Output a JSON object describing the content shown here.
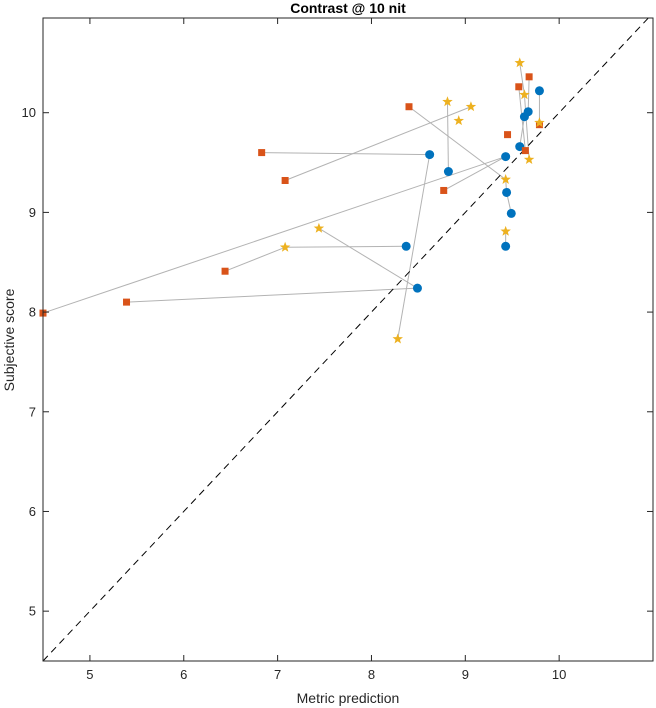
{
  "chart_data": {
    "type": "scatter",
    "title": "Contrast @ 10 nit",
    "xlabel": "Metric prediction",
    "ylabel": "Subjective score",
    "xlim": [
      4.5,
      11.0
    ],
    "ylim": [
      4.5,
      10.95
    ],
    "xticks": [
      5,
      6,
      7,
      8,
      9,
      10
    ],
    "yticks": [
      5,
      6,
      7,
      8,
      9,
      10
    ],
    "grid": false,
    "reference_line": {
      "style": "dashed",
      "color": "#000000",
      "from": [
        4.5,
        4.5
      ],
      "to": [
        11.0,
        11.0
      ]
    },
    "colors": {
      "connector": "#b3b3b3",
      "blue": "#0072bd",
      "orange": "#d95319",
      "yellow": "#edb120"
    },
    "series": [
      {
        "name": "circles",
        "marker": "circle",
        "color": "#0072bd",
        "points": [
          [
            8.62,
            9.58
          ],
          [
            8.82,
            9.41
          ],
          [
            8.37,
            8.66
          ],
          [
            8.49,
            8.24
          ],
          [
            9.43,
            9.56
          ],
          [
            9.44,
            9.2
          ],
          [
            9.49,
            8.99
          ],
          [
            9.43,
            8.66
          ],
          [
            9.58,
            9.66
          ],
          [
            9.63,
            9.96
          ],
          [
            9.67,
            10.01
          ],
          [
            9.79,
            10.22
          ]
        ]
      },
      {
        "name": "squares",
        "marker": "square",
        "color": "#d95319",
        "points": [
          [
            4.5,
            7.99
          ],
          [
            5.39,
            8.1
          ],
          [
            6.44,
            8.41
          ],
          [
            6.83,
            9.6
          ],
          [
            7.08,
            9.32
          ],
          [
            8.4,
            10.06
          ],
          [
            8.77,
            9.22
          ],
          [
            9.45,
            9.78
          ],
          [
            9.57,
            10.26
          ],
          [
            9.68,
            10.36
          ],
          [
            9.64,
            9.62
          ],
          [
            9.79,
            9.88
          ]
        ]
      },
      {
        "name": "stars",
        "marker": "star",
        "color": "#edb120",
        "points": [
          [
            7.08,
            8.65
          ],
          [
            7.44,
            8.84
          ],
          [
            8.28,
            7.73
          ],
          [
            8.81,
            10.11
          ],
          [
            8.93,
            9.92
          ],
          [
            9.06,
            10.06
          ],
          [
            9.43,
            8.81
          ],
          [
            9.43,
            9.33
          ],
          [
            9.58,
            10.5
          ],
          [
            9.63,
            10.18
          ],
          [
            9.68,
            9.53
          ],
          [
            9.79,
            9.9
          ]
        ]
      }
    ],
    "connections": [
      [
        [
          4.5,
          7.99
        ],
        [
          9.43,
          9.56
        ]
      ],
      [
        [
          5.39,
          8.1
        ],
        [
          8.49,
          8.24
        ]
      ],
      [
        [
          6.44,
          8.41
        ],
        [
          7.08,
          8.65
        ]
      ],
      [
        [
          7.08,
          8.65
        ],
        [
          8.37,
          8.66
        ]
      ],
      [
        [
          6.83,
          9.6
        ],
        [
          8.62,
          9.58
        ]
      ],
      [
        [
          8.62,
          9.58
        ],
        [
          8.28,
          7.73
        ]
      ],
      [
        [
          7.08,
          9.32
        ],
        [
          9.06,
          10.06
        ]
      ],
      [
        [
          7.44,
          8.84
        ],
        [
          8.49,
          8.24
        ]
      ],
      [
        [
          8.4,
          10.06
        ],
        [
          9.43,
          9.33
        ]
      ],
      [
        [
          8.77,
          9.22
        ],
        [
          9.43,
          9.56
        ]
      ],
      [
        [
          8.81,
          10.11
        ],
        [
          8.82,
          9.41
        ]
      ],
      [
        [
          9.43,
          9.33
        ],
        [
          9.44,
          9.2
        ]
      ],
      [
        [
          9.43,
          8.81
        ],
        [
          9.43,
          8.66
        ]
      ],
      [
        [
          9.44,
          9.2
        ],
        [
          9.49,
          8.99
        ]
      ],
      [
        [
          9.58,
          9.66
        ],
        [
          9.63,
          9.96
        ]
      ],
      [
        [
          9.57,
          10.26
        ],
        [
          9.64,
          9.62
        ]
      ],
      [
        [
          9.58,
          10.5
        ],
        [
          9.63,
          10.18
        ]
      ],
      [
        [
          9.63,
          10.18
        ],
        [
          9.68,
          9.53
        ]
      ],
      [
        [
          9.68,
          10.36
        ],
        [
          9.67,
          10.01
        ]
      ],
      [
        [
          9.79,
          10.22
        ],
        [
          9.79,
          9.88
        ]
      ],
      [
        [
          9.79,
          9.88
        ],
        [
          9.79,
          9.9
        ]
      ]
    ]
  }
}
